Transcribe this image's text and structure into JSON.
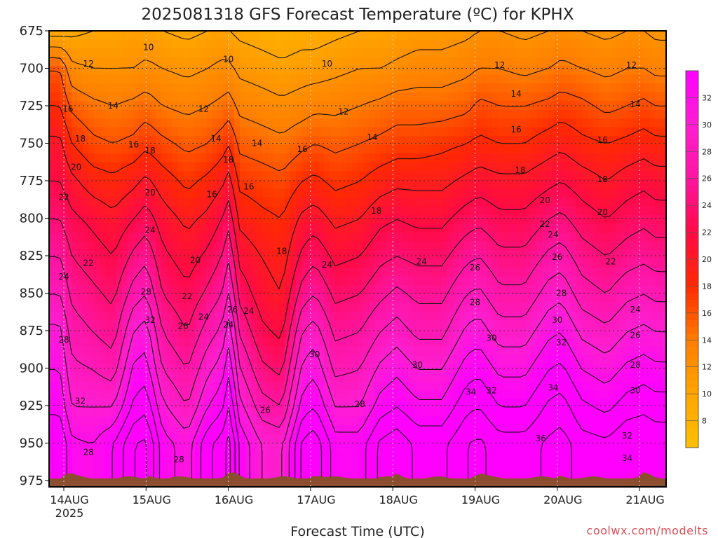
{
  "chart_data": {
    "type": "heatmap",
    "title": "2025081318 GFS Forecast Temperature (ºC) for KPHX",
    "xlabel": "Forecast Time (UTC)",
    "ylabel": "",
    "credit": "coolwx.com/modelts",
    "y_ticks": [
      675,
      700,
      725,
      750,
      775,
      800,
      825,
      850,
      875,
      900,
      925,
      950,
      975
    ],
    "ylim": [
      675,
      978
    ],
    "y_scale": "pressure (inverted, top = 675 hPa)",
    "x_ticks": [
      {
        "day": 14,
        "label": "14AUG",
        "sub": "2025"
      },
      {
        "day": 15,
        "label": "15AUG",
        "sub": ""
      },
      {
        "day": 16,
        "label": "16AUG",
        "sub": ""
      },
      {
        "day": 17,
        "label": "17AUG",
        "sub": ""
      },
      {
        "day": 18,
        "label": "18AUG",
        "sub": ""
      },
      {
        "day": 19,
        "label": "19AUG",
        "sub": ""
      },
      {
        "day": 20,
        "label": "20AUG",
        "sub": ""
      },
      {
        "day": 21,
        "label": "21AUG",
        "sub": ""
      }
    ],
    "xlim_day": [
      13.9,
      21.2
    ],
    "grid": true,
    "colorbar": {
      "labels": [
        8,
        10,
        12,
        14,
        16,
        18,
        20,
        22,
        24,
        26,
        28,
        30,
        32
      ],
      "range": [
        6,
        34
      ],
      "position": "right"
    },
    "colors": {
      "t6": "#ffc000",
      "t10": "#ffa500",
      "t14": "#ff7d00",
      "t18": "#ff2a00",
      "t22": "#ff0a46",
      "t26": "#ff14a0",
      "t30": "#ff1ed2",
      "t34": "#ff00ff",
      "ground": "#8b4e2e"
    },
    "contour_levels": [
      8,
      10,
      12,
      14,
      16,
      18,
      20,
      22,
      24,
      26,
      28,
      30,
      32,
      34,
      36,
      38
    ],
    "series": [
      {
        "day": 13.95,
        "t": [
          9.0,
          16.0,
          18.0,
          20.5,
          22.0,
          24.0,
          26.0,
          28.0,
          30.5,
          32.0,
          33.5,
          36.0
        ]
      },
      {
        "day": 14.1,
        "t": [
          9.5,
          12.5,
          15.5,
          18.0,
          20.5,
          22.5,
          24.0,
          25.5,
          27.0,
          28.5,
          30.0,
          32.5
        ]
      },
      {
        "day": 14.35,
        "t": [
          10.0,
          12.0,
          14.5,
          16.5,
          19.0,
          21.5,
          23.0,
          24.5,
          26.0,
          28.0,
          30.0,
          32.0
        ]
      },
      {
        "day": 14.6,
        "t": [
          10.0,
          12.0,
          14.0,
          16.0,
          18.5,
          20.5,
          22.0,
          23.5,
          25.0,
          27.0,
          30.0,
          34.0
        ]
      },
      {
        "day": 14.85,
        "t": [
          10.5,
          12.0,
          14.5,
          16.5,
          19.5,
          22.0,
          24.5,
          27.0,
          30.0,
          32.5,
          34.5,
          38.0
        ]
      },
      {
        "day": 15.0,
        "t": [
          10.5,
          12.5,
          15.0,
          17.5,
          20.5,
          23.0,
          25.5,
          28.0,
          31.0,
          33.0,
          35.5,
          38.5
        ]
      },
      {
        "day": 15.2,
        "t": [
          10.0,
          12.0,
          14.0,
          16.5,
          19.0,
          21.0,
          22.5,
          24.0,
          26.0,
          28.0,
          30.5,
          33.0
        ]
      },
      {
        "day": 15.5,
        "t": [
          9.5,
          11.5,
          13.5,
          15.5,
          17.5,
          19.5,
          21.0,
          22.5,
          24.0,
          26.0,
          28.0,
          31.0
        ]
      },
      {
        "day": 15.75,
        "t": [
          10.0,
          12.0,
          14.0,
          16.0,
          18.5,
          20.5,
          22.5,
          24.5,
          27.0,
          29.5,
          32.0,
          35.5
        ]
      },
      {
        "day": 15.92,
        "t": [
          10.5,
          12.5,
          14.5,
          17.0,
          19.5,
          22.0,
          24.0,
          26.0,
          28.5,
          31.0,
          33.5,
          37.0
        ]
      },
      {
        "day": 16.02,
        "t": [
          10.0,
          12.5,
          15.0,
          18.0,
          21.0,
          23.5,
          26.0,
          28.5,
          31.5,
          34.0,
          36.5,
          39.0
        ]
      },
      {
        "day": 16.12,
        "t": [
          9.5,
          11.5,
          13.5,
          15.5,
          17.5,
          19.5,
          21.5,
          23.5,
          26.0,
          28.5,
          31.0,
          34.0
        ]
      },
      {
        "day": 16.4,
        "t": [
          9.0,
          11.0,
          13.0,
          15.0,
          17.0,
          18.5,
          20.0,
          21.0,
          22.5,
          24.5,
          27.0,
          30.0
        ]
      },
      {
        "day": 16.65,
        "t": [
          8.5,
          10.5,
          12.5,
          14.5,
          16.5,
          18.0,
          19.0,
          20.0,
          21.5,
          23.5,
          26.0,
          29.5
        ]
      },
      {
        "day": 16.9,
        "t": [
          9.0,
          11.0,
          13.0,
          15.5,
          18.0,
          20.5,
          22.5,
          25.0,
          28.0,
          30.5,
          33.0,
          36.5
        ]
      },
      {
        "day": 17.05,
        "t": [
          9.0,
          11.0,
          13.5,
          16.0,
          18.5,
          21.0,
          23.5,
          26.0,
          29.0,
          31.5,
          34.0,
          37.5
        ]
      },
      {
        "day": 17.3,
        "t": [
          9.5,
          11.5,
          13.5,
          15.5,
          17.5,
          19.5,
          21.5,
          23.5,
          25.5,
          27.5,
          30.0,
          33.0
        ]
      },
      {
        "day": 17.6,
        "t": [
          10.0,
          12.0,
          14.0,
          16.0,
          18.0,
          20.0,
          22.0,
          24.0,
          26.0,
          28.0,
          30.0,
          33.0
        ]
      },
      {
        "day": 17.85,
        "t": [
          10.0,
          12.0,
          14.5,
          16.5,
          19.0,
          21.5,
          23.5,
          25.5,
          28.0,
          30.5,
          33.0,
          36.5
        ]
      },
      {
        "day": 18.05,
        "t": [
          10.5,
          12.5,
          15.0,
          17.0,
          19.5,
          22.0,
          24.0,
          26.5,
          29.0,
          31.5,
          34.0,
          37.5
        ]
      },
      {
        "day": 18.3,
        "t": [
          11.0,
          13.0,
          15.0,
          17.0,
          19.5,
          21.5,
          23.5,
          25.5,
          27.5,
          30.0,
          32.5,
          35.5
        ]
      },
      {
        "day": 18.6,
        "t": [
          11.0,
          13.0,
          15.0,
          17.5,
          19.5,
          21.5,
          23.5,
          25.5,
          27.5,
          30.0,
          32.5,
          35.5
        ]
      },
      {
        "day": 18.9,
        "t": [
          11.5,
          13.5,
          15.5,
          18.0,
          20.5,
          23.0,
          25.5,
          28.0,
          30.5,
          33.0,
          35.5,
          38.0
        ]
      },
      {
        "day": 19.05,
        "t": [
          12.0,
          14.0,
          16.5,
          18.5,
          21.0,
          23.5,
          26.0,
          28.5,
          31.0,
          33.5,
          36.0,
          38.5
        ]
      },
      {
        "day": 19.3,
        "t": [
          12.0,
          14.0,
          16.0,
          18.0,
          20.5,
          22.5,
          24.5,
          26.5,
          29.0,
          31.5,
          34.0,
          37.0
        ]
      },
      {
        "day": 19.6,
        "t": [
          11.5,
          13.5,
          16.0,
          18.0,
          20.5,
          22.5,
          24.5,
          26.5,
          29.0,
          31.5,
          34.0,
          37.0
        ]
      },
      {
        "day": 19.9,
        "t": [
          12.0,
          14.0,
          16.5,
          19.0,
          21.5,
          24.0,
          26.5,
          29.0,
          31.5,
          34.0,
          36.5,
          38.5
        ]
      },
      {
        "day": 20.05,
        "t": [
          12.5,
          14.5,
          17.0,
          19.5,
          22.0,
          24.5,
          27.0,
          29.5,
          32.0,
          34.5,
          37.0,
          39.0
        ]
      },
      {
        "day": 20.3,
        "t": [
          12.0,
          14.0,
          16.5,
          18.5,
          21.0,
          23.0,
          25.0,
          27.0,
          29.5,
          32.0,
          34.5,
          37.0
        ]
      },
      {
        "day": 20.6,
        "t": [
          11.5,
          13.5,
          15.5,
          18.0,
          20.0,
          22.0,
          24.0,
          26.0,
          28.5,
          31.0,
          33.5,
          36.5
        ]
      },
      {
        "day": 20.85,
        "t": [
          12.0,
          14.0,
          16.0,
          18.5,
          21.0,
          23.0,
          25.0,
          27.5,
          30.0,
          32.5,
          35.0,
          38.0
        ]
      },
      {
        "day": 21.05,
        "t": [
          12.0,
          14.0,
          16.5,
          19.0,
          21.5,
          23.5,
          25.5,
          28.0,
          30.5,
          33.0,
          35.5,
          38.0
        ]
      },
      {
        "day": 21.2,
        "t": [
          11.5,
          13.5,
          16.0,
          18.5,
          21.0,
          23.0,
          25.0,
          27.5,
          30.0,
          32.5,
          35.0,
          37.5
        ]
      }
    ],
    "contour_labels": [
      {
        "day": 15.03,
        "p": 686,
        "v": 10
      },
      {
        "day": 16.0,
        "p": 694,
        "v": 10
      },
      {
        "day": 17.2,
        "p": 697,
        "v": 10
      },
      {
        "day": 14.3,
        "p": 697,
        "v": 12
      },
      {
        "day": 15.7,
        "p": 727,
        "v": 12
      },
      {
        "day": 17.4,
        "p": 729,
        "v": 12
      },
      {
        "day": 19.3,
        "p": 698,
        "v": 12
      },
      {
        "day": 20.9,
        "p": 698,
        "v": 12
      },
      {
        "day": 14.6,
        "p": 725,
        "v": 14
      },
      {
        "day": 15.85,
        "p": 747,
        "v": 14
      },
      {
        "day": 16.35,
        "p": 750,
        "v": 14
      },
      {
        "day": 17.75,
        "p": 746,
        "v": 14
      },
      {
        "day": 19.5,
        "p": 717,
        "v": 14
      },
      {
        "day": 20.95,
        "p": 724,
        "v": 14
      },
      {
        "day": 14.05,
        "p": 727,
        "v": 16
      },
      {
        "day": 14.85,
        "p": 751,
        "v": 16
      },
      {
        "day": 15.8,
        "p": 784,
        "v": 16
      },
      {
        "day": 16.25,
        "p": 779,
        "v": 16
      },
      {
        "day": 16.9,
        "p": 754,
        "v": 16
      },
      {
        "day": 19.5,
        "p": 741,
        "v": 16
      },
      {
        "day": 20.55,
        "p": 748,
        "v": 16
      },
      {
        "day": 14.2,
        "p": 747,
        "v": 18
      },
      {
        "day": 15.05,
        "p": 755,
        "v": 18
      },
      {
        "day": 16.0,
        "p": 761,
        "v": 18
      },
      {
        "day": 16.65,
        "p": 822,
        "v": 18
      },
      {
        "day": 17.8,
        "p": 795,
        "v": 18
      },
      {
        "day": 19.55,
        "p": 768,
        "v": 18
      },
      {
        "day": 20.55,
        "p": 774,
        "v": 18
      },
      {
        "day": 14.15,
        "p": 766,
        "v": 20
      },
      {
        "day": 15.05,
        "p": 783,
        "v": 20
      },
      {
        "day": 15.6,
        "p": 828,
        "v": 20
      },
      {
        "day": 19.85,
        "p": 788,
        "v": 20
      },
      {
        "day": 20.55,
        "p": 796,
        "v": 20
      },
      {
        "day": 14.0,
        "p": 786,
        "v": 22
      },
      {
        "day": 14.3,
        "p": 830,
        "v": 22
      },
      {
        "day": 15.5,
        "p": 852,
        "v": 22
      },
      {
        "day": 19.85,
        "p": 804,
        "v": 22
      },
      {
        "day": 20.65,
        "p": 829,
        "v": 22
      },
      {
        "day": 14.0,
        "p": 839,
        "v": 24
      },
      {
        "day": 15.05,
        "p": 808,
        "v": 24
      },
      {
        "day": 15.7,
        "p": 866,
        "v": 24
      },
      {
        "day": 16.0,
        "p": 871,
        "v": 24
      },
      {
        "day": 16.25,
        "p": 862,
        "v": 24
      },
      {
        "day": 17.2,
        "p": 831,
        "v": 24
      },
      {
        "day": 18.35,
        "p": 829,
        "v": 24
      },
      {
        "day": 19.95,
        "p": 811,
        "v": 24
      },
      {
        "day": 20.95,
        "p": 861,
        "v": 24
      },
      {
        "day": 15.45,
        "p": 872,
        "v": 26
      },
      {
        "day": 16.05,
        "p": 861,
        "v": 26
      },
      {
        "day": 16.45,
        "p": 928,
        "v": 26
      },
      {
        "day": 19.0,
        "p": 833,
        "v": 26
      },
      {
        "day": 20.0,
        "p": 826,
        "v": 26
      },
      {
        "day": 20.95,
        "p": 878,
        "v": 26
      },
      {
        "day": 14.0,
        "p": 881,
        "v": 28
      },
      {
        "day": 14.3,
        "p": 956,
        "v": 28
      },
      {
        "day": 15.0,
        "p": 849,
        "v": 28
      },
      {
        "day": 15.4,
        "p": 961,
        "v": 28
      },
      {
        "day": 17.6,
        "p": 924,
        "v": 28
      },
      {
        "day": 19.0,
        "p": 856,
        "v": 28
      },
      {
        "day": 20.05,
        "p": 850,
        "v": 28
      },
      {
        "day": 20.95,
        "p": 898,
        "v": 28
      },
      {
        "day": 17.05,
        "p": 891,
        "v": 30
      },
      {
        "day": 18.3,
        "p": 898,
        "v": 30
      },
      {
        "day": 19.2,
        "p": 880,
        "v": 30
      },
      {
        "day": 20.0,
        "p": 868,
        "v": 30
      },
      {
        "day": 20.95,
        "p": 915,
        "v": 30
      },
      {
        "day": 14.2,
        "p": 922,
        "v": 32
      },
      {
        "day": 15.05,
        "p": 868,
        "v": 32
      },
      {
        "day": 19.2,
        "p": 915,
        "v": 32
      },
      {
        "day": 20.05,
        "p": 883,
        "v": 32
      },
      {
        "day": 20.85,
        "p": 945,
        "v": 32
      },
      {
        "day": 18.95,
        "p": 916,
        "v": 34
      },
      {
        "day": 19.95,
        "p": 913,
        "v": 34
      },
      {
        "day": 20.85,
        "p": 960,
        "v": 34
      },
      {
        "day": 19.8,
        "p": 947,
        "v": 36
      }
    ]
  }
}
